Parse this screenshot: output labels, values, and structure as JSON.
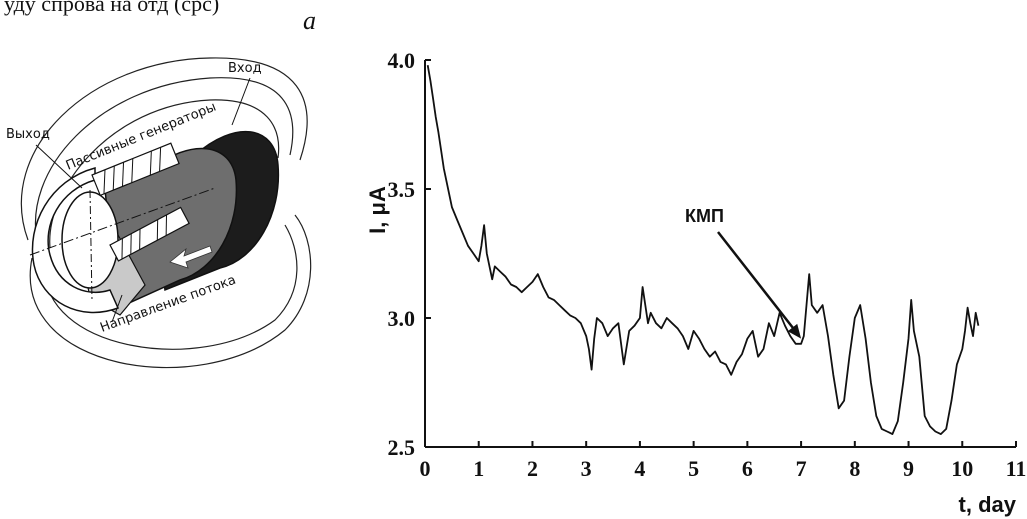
{
  "header": {
    "top_text": "уду спрова на отд (срс)",
    "panel_letter": "a"
  },
  "diagram": {
    "labels": {
      "inlet": "Вход",
      "outlet": "Выход",
      "passive_generators": "Пассивные генераторы",
      "flow_direction": "Направление потока"
    },
    "colors": {
      "dark_section": "#1c1c1c",
      "mid_section": "#6e6e6e",
      "light_section": "#c9c9c9"
    }
  },
  "chart_data": {
    "type": "line",
    "ylabel": "I, μA",
    "xlabel": "t, day",
    "xlim": [
      0,
      11
    ],
    "ylim": [
      2.5,
      4.0
    ],
    "x_ticks": [
      "0",
      "1",
      "2",
      "3",
      "4",
      "5",
      "6",
      "7",
      "8",
      "9",
      "10",
      "11"
    ],
    "y_ticks": [
      "2.5",
      "3.0",
      "3.5",
      "4.0"
    ],
    "grid": false,
    "annotation": {
      "text": "КМП",
      "x": 7.0,
      "y": 2.92
    },
    "series": [
      {
        "color": "#111111",
        "x": [
          0.05,
          0.1,
          0.15,
          0.2,
          0.25,
          0.3,
          0.35,
          0.4,
          0.45,
          0.5,
          0.6,
          0.7,
          0.8,
          0.9,
          1.0,
          1.05,
          1.1,
          1.15,
          1.2,
          1.25,
          1.3,
          1.4,
          1.5,
          1.6,
          1.7,
          1.8,
          1.9,
          2.0,
          2.1,
          2.2,
          2.3,
          2.4,
          2.5,
          2.6,
          2.7,
          2.8,
          2.9,
          3.0,
          3.05,
          3.1,
          3.15,
          3.2,
          3.3,
          3.4,
          3.5,
          3.6,
          3.7,
          3.8,
          3.9,
          4.0,
          4.05,
          4.1,
          4.15,
          4.2,
          4.3,
          4.4,
          4.5,
          4.6,
          4.7,
          4.8,
          4.9,
          5.0,
          5.1,
          5.2,
          5.3,
          5.4,
          5.5,
          5.6,
          5.7,
          5.8,
          5.9,
          6.0,
          6.1,
          6.2,
          6.3,
          6.4,
          6.5,
          6.6,
          6.7,
          6.8,
          6.9,
          7.0,
          7.05,
          7.1,
          7.15,
          7.2,
          7.3,
          7.4,
          7.5,
          7.6,
          7.7,
          7.8,
          7.9,
          8.0,
          8.1,
          8.2,
          8.3,
          8.4,
          8.5,
          8.6,
          8.7,
          8.8,
          8.9,
          9.0,
          9.05,
          9.1,
          9.2,
          9.3,
          9.4,
          9.5,
          9.6,
          9.7,
          9.8,
          9.9,
          10.0,
          10.05,
          10.1,
          10.15,
          10.2,
          10.25,
          10.3
        ],
        "y": [
          3.98,
          3.92,
          3.85,
          3.78,
          3.72,
          3.65,
          3.58,
          3.53,
          3.48,
          3.43,
          3.38,
          3.33,
          3.28,
          3.25,
          3.22,
          3.28,
          3.36,
          3.25,
          3.2,
          3.15,
          3.2,
          3.18,
          3.16,
          3.13,
          3.12,
          3.1,
          3.12,
          3.14,
          3.17,
          3.12,
          3.08,
          3.07,
          3.05,
          3.03,
          3.01,
          3.0,
          2.98,
          2.93,
          2.88,
          2.8,
          2.92,
          3.0,
          2.98,
          2.93,
          2.96,
          2.98,
          2.82,
          2.95,
          2.97,
          3.0,
          3.12,
          3.05,
          2.98,
          3.02,
          2.98,
          2.96,
          3.0,
          2.98,
          2.96,
          2.93,
          2.88,
          2.95,
          2.92,
          2.88,
          2.85,
          2.87,
          2.83,
          2.82,
          2.78,
          2.83,
          2.86,
          2.92,
          2.95,
          2.85,
          2.88,
          2.98,
          2.93,
          3.02,
          2.97,
          2.93,
          2.9,
          2.9,
          2.93,
          3.05,
          3.17,
          3.05,
          3.02,
          3.05,
          2.93,
          2.78,
          2.65,
          2.68,
          2.85,
          3.0,
          3.05,
          2.92,
          2.75,
          2.62,
          2.57,
          2.56,
          2.55,
          2.6,
          2.75,
          2.92,
          3.07,
          2.95,
          2.85,
          2.62,
          2.58,
          2.56,
          2.55,
          2.57,
          2.68,
          2.82,
          2.88,
          2.95,
          3.04,
          2.98,
          2.93,
          3.02,
          2.97
        ]
      }
    ]
  }
}
